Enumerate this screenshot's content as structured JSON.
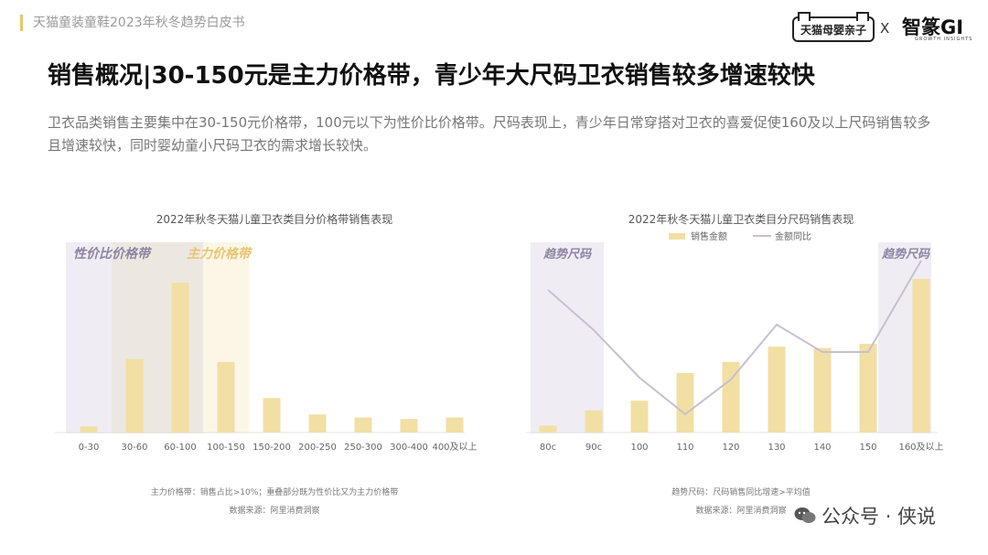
{
  "header": {
    "report_title": "天猫童装童鞋2023年秋冬趋势白皮书",
    "logo1": "天猫母婴亲子",
    "logo_sep": "X",
    "logo2": "智篆GI",
    "logo2_sub": "GROWTH INSIGHTS"
  },
  "title": "销售概况|30-150元是主力价格带，青少年大尺码卫衣销售较多增速较快",
  "description": "卫衣品类销售主要集中在30-150元价格带，100元以下为性价比价格带。尺码表现上，青少年日常穿搭对卫衣的喜爱促使160及以上尺码销售较多且增速较快，同时婴幼童小尺码卫衣的需求增长较快。",
  "watermark": "公众号 · 侠说",
  "colors": {
    "bar": "#f2dfa4",
    "line": "#c7c0cf",
    "band_purple": "#efedf3",
    "band_tan": "#f5efe6",
    "band_yellow": "#fcf6e6",
    "accent": "#e8c766"
  },
  "chart_data": [
    {
      "type": "bar",
      "title": "2022年秋冬天猫儿童卫衣类目分价格带销售表现",
      "categories": [
        "0-30",
        "30-60",
        "60-100",
        "100-150",
        "150-200",
        "200-250",
        "250-300",
        "300-400",
        "400及以上"
      ],
      "values": [
        4,
        49,
        100,
        47,
        23,
        12,
        10,
        9,
        10
      ],
      "annotations": [
        "性价比价格带",
        "主力价格带"
      ],
      "footnotes": [
        "主力价格带：销售占比>10%；重叠部分既为性价比又为主力价格带",
        "数据来源：阿里消费洞察"
      ]
    },
    {
      "type": "bar+line",
      "title": "2022年秋冬天猫儿童卫衣类目分尺码销售表现",
      "categories": [
        "80c",
        "90c",
        "100",
        "110",
        "120",
        "130",
        "140",
        "150",
        "160及以上"
      ],
      "series": [
        {
          "name": "销售金额",
          "type": "bar",
          "values": [
            5,
            16,
            23,
            43,
            51,
            62,
            61,
            64,
            111
          ]
        },
        {
          "name": "金额同比",
          "type": "line",
          "values": [
            78,
            56,
            30,
            10,
            29,
            59,
            44,
            44,
            94
          ]
        }
      ],
      "annotations": [
        "趋势尺码",
        "趋势尺码"
      ],
      "footnotes": [
        "趋势尺码：尺码销售同比增速>平均值",
        "数据来源：阿里消费洞察"
      ]
    }
  ]
}
